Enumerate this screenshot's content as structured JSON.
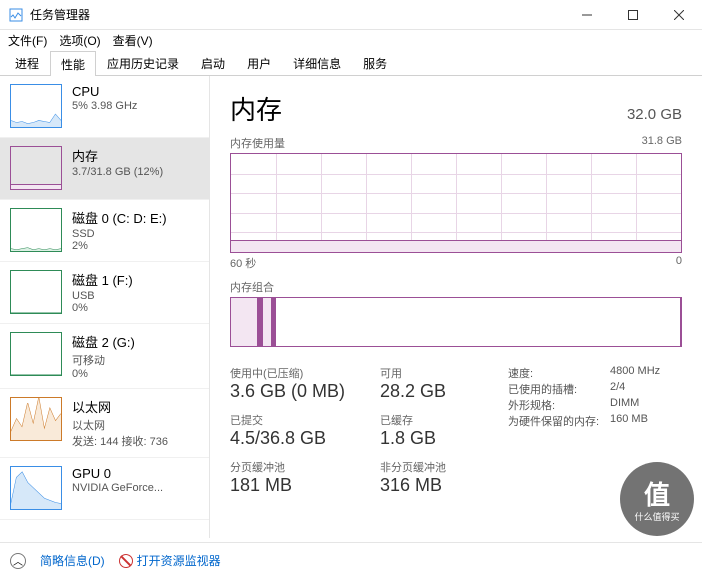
{
  "window": {
    "title": "任务管理器"
  },
  "menu": {
    "file": "文件(F)",
    "options": "选项(O)",
    "view": "查看(V)"
  },
  "tabs": {
    "items": [
      "进程",
      "性能",
      "应用历史记录",
      "启动",
      "用户",
      "详细信息",
      "服务"
    ],
    "active": 1
  },
  "sidebar": [
    {
      "name": "cpu",
      "title": "CPU",
      "sub": "5%  3.98 GHz",
      "color": "#3a8ee6",
      "fill": "#d6e8f9",
      "spark": [
        6,
        4,
        5,
        3,
        4,
        6,
        5,
        4,
        12,
        6
      ]
    },
    {
      "name": "memory",
      "title": "内存",
      "sub": "3.7/31.8 GB (12%)",
      "color": "#9b4f96",
      "fill": "#f3e6f2",
      "selected": true,
      "bar": 0.12
    },
    {
      "name": "disk0",
      "title": "磁盘 0 (C: D: E:)",
      "sub": "SSD",
      "sub2": "2%",
      "color": "#2e8b57",
      "fill": "#dcf0e4",
      "spark": [
        2,
        1,
        2,
        3,
        1,
        2,
        1,
        2,
        1,
        2
      ]
    },
    {
      "name": "disk1",
      "title": "磁盘 1 (F:)",
      "sub": "USB",
      "sub2": "0%",
      "color": "#2e8b57",
      "fill": "#dcf0e4",
      "spark": [
        0,
        0,
        0,
        0,
        0,
        0,
        0,
        0,
        0,
        0
      ]
    },
    {
      "name": "disk2",
      "title": "磁盘 2 (G:)",
      "sub": "可移动",
      "sub2": "0%",
      "color": "#2e8b57",
      "fill": "#dcf0e4",
      "spark": [
        0,
        0,
        0,
        0,
        0,
        0,
        0,
        0,
        0,
        0
      ]
    },
    {
      "name": "ethernet",
      "title": "以太网",
      "sub": "以太网",
      "sub2": "发送: 144  接收: 736",
      "color": "#cc7a29",
      "fill": "#f9ead9",
      "spark": [
        8,
        20,
        12,
        35,
        15,
        40,
        10,
        30,
        18,
        25
      ]
    },
    {
      "name": "gpu0",
      "title": "GPU 0",
      "sub": "NVIDIA GeForce...",
      "color": "#3a8ee6",
      "fill": "#d6e8f9",
      "spark": [
        5,
        30,
        35,
        25,
        20,
        15,
        10,
        8,
        6,
        5
      ]
    }
  ],
  "main": {
    "title": "内存",
    "capacity": "32.0 GB",
    "chart1_label": "内存使用量",
    "chart1_max": "31.8 GB",
    "chart1_fill_pct": 12,
    "axis_left": "60 秒",
    "axis_right": "0",
    "chart2_label": "内存组合",
    "chart2_segs": [
      {
        "w": 6,
        "c": "#f3e6f2"
      },
      {
        "w": 1.2,
        "c": "#9b4f96"
      },
      {
        "w": 2,
        "c": "#f3e6f2"
      },
      {
        "w": 0.8,
        "c": "#9b4f96"
      },
      {
        "w": 90,
        "c": "#ffffff"
      }
    ]
  },
  "stats": {
    "left": [
      {
        "k": "使用中(已压缩)",
        "v": "3.6 GB (0 MB)"
      },
      {
        "k": "可用",
        "v": "28.2 GB"
      },
      {
        "k": "已提交",
        "v": "4.5/36.8 GB"
      },
      {
        "k": "已缓存",
        "v": "1.8 GB"
      },
      {
        "k": "分页缓冲池",
        "v": "181 MB"
      },
      {
        "k": "非分页缓冲池",
        "v": "316 MB"
      }
    ],
    "right": [
      {
        "k": "速度:",
        "v": "4800 MHz"
      },
      {
        "k": "已使用的插槽:",
        "v": "2/4"
      },
      {
        "k": "外形规格:",
        "v": "DIMM"
      },
      {
        "k": "为硬件保留的内存:",
        "v": "160 MB"
      }
    ]
  },
  "footer": {
    "brief": "简略信息(D)",
    "resmon": "打开资源监视器"
  },
  "watermark": {
    "char": "值",
    "text": "什么值得买"
  }
}
